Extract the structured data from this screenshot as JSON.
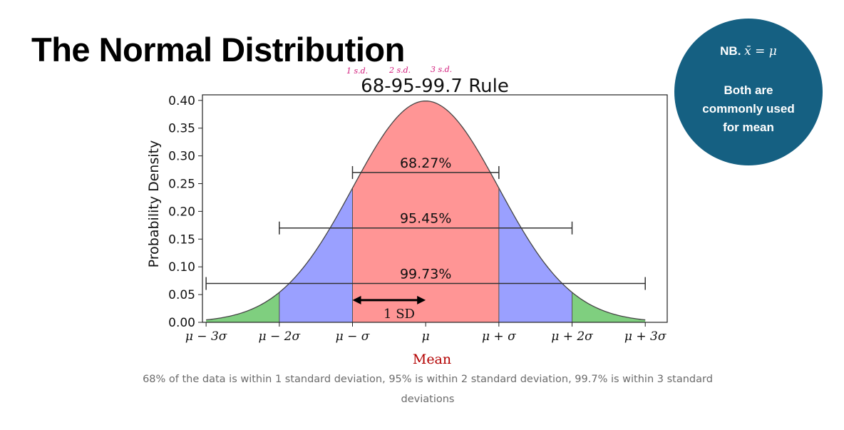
{
  "slide": {
    "title": "The Normal Distribution",
    "badge": {
      "line1_prefix": "NB. ",
      "line1_formula": "x̄ = μ",
      "line2": "Both are commonly used for mean"
    },
    "caption": "68% of the data is within 1 standard deviation, 95% is within 2 standard deviation, 99.7% is within 3 standard deviations"
  },
  "annotations": {
    "handwritten": [
      "1 s.d.",
      "2 s.d.",
      "3 s.d."
    ],
    "sd_arrow_label": "1 SD",
    "mean_label": "Mean"
  },
  "colors": {
    "red_region": "#ff9595",
    "blue_region": "#9aa0ff",
    "green_region": "#7fcf7f",
    "badge": "#156082",
    "mean_label": "#b30000"
  },
  "chart_data": {
    "type": "area",
    "title": "68-95-99.7 Rule",
    "xlabel": "",
    "ylabel": "Probability Density",
    "xlim": [
      -3.05,
      3.3
    ],
    "ylim": [
      0,
      0.41
    ],
    "x_ticks": [
      -3,
      -2,
      -1,
      0,
      1,
      2,
      3
    ],
    "x_tick_labels": [
      "μ − 3σ",
      "μ − 2σ",
      "μ − σ",
      "μ",
      "μ + σ",
      "μ + 2σ",
      "μ + 3σ"
    ],
    "y_ticks": [
      0.0,
      0.05,
      0.1,
      0.15,
      0.2,
      0.25,
      0.3,
      0.35,
      0.4
    ],
    "y_tick_labels": [
      "0.00",
      "0.05",
      "0.10",
      "0.15",
      "0.20",
      "0.25",
      "0.30",
      "0.35",
      "0.40"
    ],
    "curve": {
      "distribution": "normal",
      "mean": 0,
      "sd": 1
    },
    "regions": [
      {
        "name": "within-1sd",
        "from": -1,
        "to": 1,
        "color": "#ff9595"
      },
      {
        "name": "within-2sd-left",
        "from": -2,
        "to": -1,
        "color": "#9aa0ff"
      },
      {
        "name": "within-2sd-right",
        "from": 1,
        "to": 2,
        "color": "#9aa0ff"
      },
      {
        "name": "within-3sd-left",
        "from": -3,
        "to": -2,
        "color": "#7fcf7f"
      },
      {
        "name": "within-3sd-right",
        "from": 2,
        "to": 3,
        "color": "#7fcf7f"
      }
    ],
    "brackets": [
      {
        "from": -1,
        "to": 1,
        "y": 0.27,
        "label": "68.27%"
      },
      {
        "from": -2,
        "to": 2,
        "y": 0.17,
        "label": "95.45%"
      },
      {
        "from": -3,
        "to": 3,
        "y": 0.07,
        "label": "99.73%"
      }
    ],
    "sd_arrow": {
      "from": -1,
      "to": 0,
      "y": 0.04
    }
  }
}
